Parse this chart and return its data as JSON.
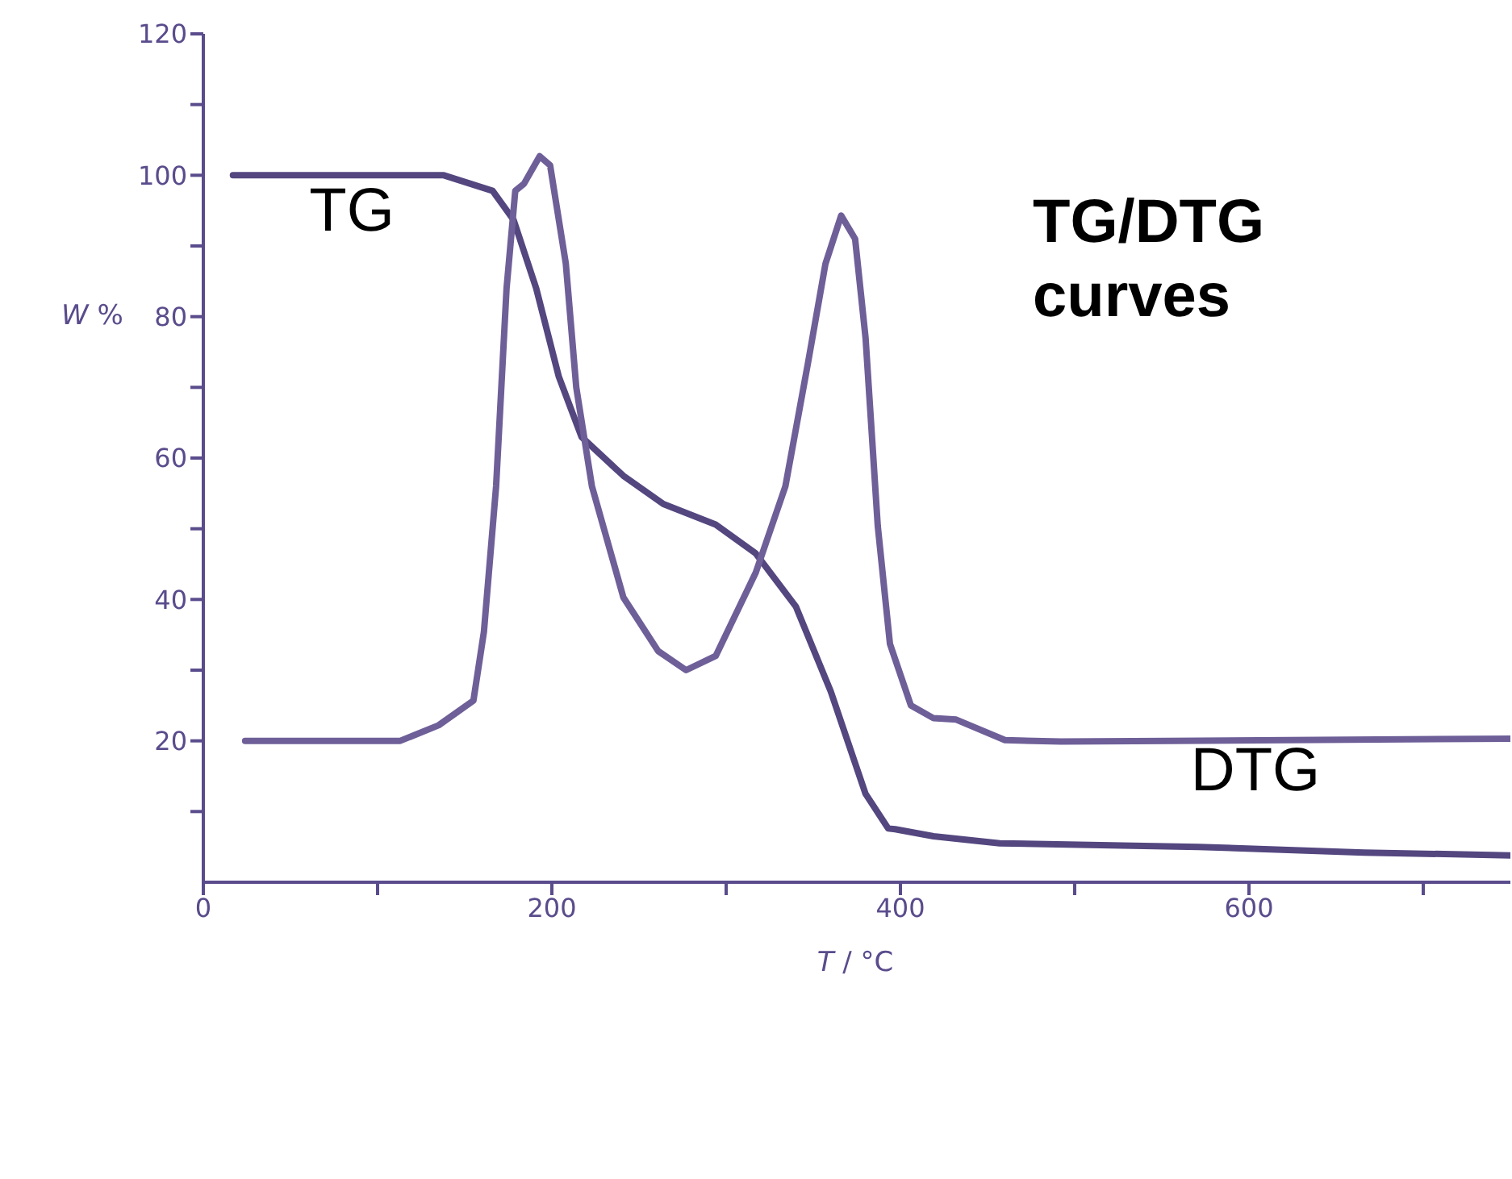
{
  "chart_data": {
    "type": "line",
    "title": "TG/DTG curves",
    "xlabel": "T / °C",
    "ylabel": "W %",
    "xlim": [
      0,
      750
    ],
    "ylim": [
      0,
      120
    ],
    "xticks": [
      0,
      {
        "value": 100,
        "label": null
      },
      200,
      {
        "value": 300,
        "label": null
      },
      400,
      {
        "value": 500,
        "label": null
      },
      600,
      {
        "value": 700,
        "label": null
      }
    ],
    "yticks": [
      {
        "value": 10,
        "label": null
      },
      20,
      {
        "value": 30,
        "label": null
      },
      40,
      {
        "value": 50,
        "label": null
      },
      60,
      {
        "value": 70,
        "label": null
      },
      80,
      {
        "value": 90,
        "label": null
      },
      100,
      {
        "value": 110,
        "label": null
      },
      120
    ],
    "grid": false,
    "legend": false,
    "marker": "none",
    "line_style": "solid",
    "series": [
      {
        "name": "TG",
        "color": "#54467f",
        "x": [
          17,
          138,
          166,
          178,
          191,
          204,
          217,
          241,
          264,
          294,
          317,
          340,
          360,
          380,
          393,
          397,
          419,
          457,
          571,
          666,
          750
        ],
        "values": [
          100,
          100,
          97.8,
          93.7,
          84,
          71.5,
          63,
          57.5,
          53.5,
          50.6,
          46.5,
          39,
          27,
          12.5,
          7.6,
          7.5,
          6.5,
          5.5,
          5,
          4.2,
          3.8
        ]
      },
      {
        "name": "DTG",
        "color": "#6e5f98",
        "x": [
          24,
          113,
          135,
          155,
          161,
          168,
          174,
          179,
          184,
          193,
          199,
          208,
          214,
          223,
          241,
          261,
          277,
          294,
          317,
          334,
          347,
          357,
          366,
          374,
          380,
          387,
          394,
          406,
          419,
          432,
          460,
          492,
          555,
          750
        ],
        "values": [
          20,
          20,
          22.2,
          25.7,
          35.4,
          56,
          84,
          97.8,
          98.8,
          102.7,
          101.4,
          87.5,
          70,
          56,
          40.3,
          32.7,
          30,
          32,
          43.8,
          56,
          73.5,
          87.5,
          94.3,
          91,
          77,
          50.4,
          33.7,
          25,
          23.2,
          23,
          20.1,
          19.9,
          20,
          20.3
        ]
      }
    ]
  }
}
